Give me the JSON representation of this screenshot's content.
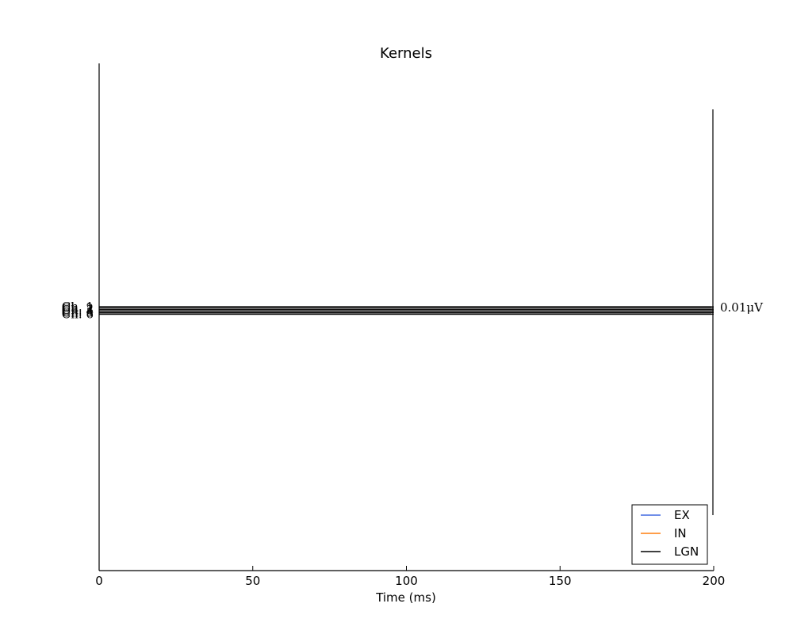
{
  "chart_data": {
    "type": "line",
    "title": "Kernels",
    "xlabel": "Time (ms)",
    "ylabel": "",
    "xlim": [
      0,
      200
    ],
    "x_ticks": [
      0,
      50,
      100,
      150,
      200
    ],
    "x_tick_labels": [
      "0",
      "50",
      "100",
      "150",
      "200"
    ],
    "y_axis_ticks": "none",
    "grid": false,
    "channels": [
      "Ch. 1",
      "Ch. 2",
      "Ch. 3",
      "Ch. 4",
      "Ch. 5",
      "Ch. 6"
    ],
    "series": [
      {
        "name": "EX",
        "color": "#4169e1",
        "values": [
          0,
          0
        ]
      },
      {
        "name": "IN",
        "color": "#ff7f0e",
        "values": [
          0,
          0
        ]
      },
      {
        "name": "LGN",
        "color": "#000000",
        "values": [
          0,
          0
        ]
      }
    ],
    "x": [
      0,
      200
    ],
    "scale_bar_label": "0.01μV",
    "legend_position": "lower-right"
  }
}
